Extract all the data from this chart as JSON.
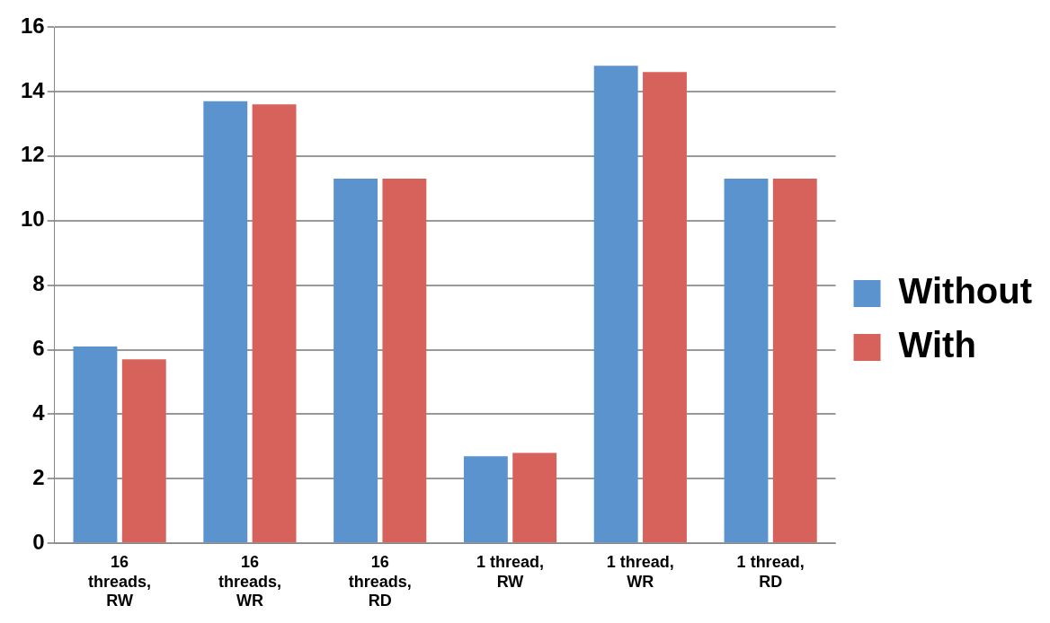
{
  "chart_data": {
    "type": "bar",
    "categories": [
      "16 threads, RW",
      "16 threads, WR",
      "16 threads, RD",
      "1 thread, RW",
      "1 thread, WR",
      "1 thread, RD"
    ],
    "series": [
      {
        "name": "Without",
        "color": "#5b93cf",
        "values": [
          6.1,
          13.7,
          11.3,
          2.7,
          14.8,
          11.3
        ]
      },
      {
        "name": "With",
        "color": "#d7625c",
        "values": [
          5.7,
          13.6,
          11.3,
          2.8,
          14.6,
          11.3
        ]
      }
    ],
    "ylim": [
      0,
      16
    ],
    "yticks": [
      0,
      2,
      4,
      6,
      8,
      10,
      12,
      14,
      16
    ],
    "grid": "y",
    "legend": "right"
  }
}
